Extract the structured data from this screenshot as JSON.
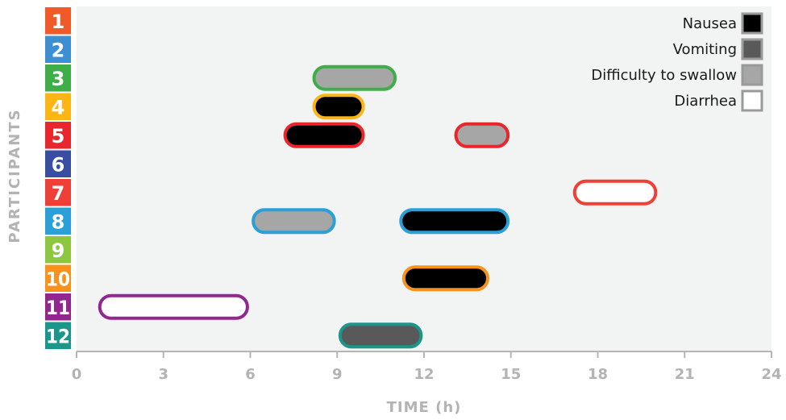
{
  "chart_data": {
    "type": "timeline",
    "xlabel": "TIME (h)",
    "ylabel": "PARTICIPANTS",
    "xlim": [
      0,
      24
    ],
    "xticks": [
      "0",
      "3",
      "6",
      "9",
      "12",
      "15",
      "18",
      "21",
      "24"
    ],
    "participants": [
      {
        "label": "1",
        "color": "#f05a28"
      },
      {
        "label": "2",
        "color": "#3d8fd1"
      },
      {
        "label": "3",
        "color": "#3fae49"
      },
      {
        "label": "4",
        "color": "#fbb616"
      },
      {
        "label": "5",
        "color": "#e8262c"
      },
      {
        "label": "6",
        "color": "#3a4ea1"
      },
      {
        "label": "7",
        "color": "#ee4036"
      },
      {
        "label": "8",
        "color": "#2a9fd8"
      },
      {
        "label": "9",
        "color": "#8dc63f"
      },
      {
        "label": "10",
        "color": "#f7931d"
      },
      {
        "label": "11",
        "color": "#92278f"
      },
      {
        "label": "12",
        "color": "#1a968a"
      }
    ],
    "symptom_colors": {
      "Nausea": "#000000",
      "Vomiting": "#595959",
      "Difficulty to swallow": "#a6a6a6",
      "Diarrhea": "#ffffff"
    },
    "legend": [
      "Nausea",
      "Vomiting",
      "Difficulty to swallow",
      "Diarrhea"
    ],
    "legend_position": "top-right",
    "events": [
      {
        "participant": "3",
        "symptom": "Difficulty to swallow",
        "start": 8.2,
        "end": 11.0
      },
      {
        "participant": "4",
        "symptom": "Nausea",
        "start": 8.2,
        "end": 9.9
      },
      {
        "participant": "5",
        "symptom": "Nausea",
        "start": 7.2,
        "end": 9.9
      },
      {
        "participant": "5",
        "symptom": "Difficulty to swallow",
        "start": 13.1,
        "end": 14.9
      },
      {
        "participant": "7",
        "symptom": "Diarrhea",
        "start": 17.2,
        "end": 20.0
      },
      {
        "participant": "8",
        "symptom": "Difficulty to swallow",
        "start": 6.1,
        "end": 8.9
      },
      {
        "participant": "8",
        "symptom": "Nausea",
        "start": 11.2,
        "end": 14.9
      },
      {
        "participant": "10",
        "symptom": "Nausea",
        "start": 11.3,
        "end": 14.2
      },
      {
        "participant": "11",
        "symptom": "Diarrhea",
        "start": 0.8,
        "end": 5.9
      },
      {
        "participant": "12",
        "symptom": "Vomiting",
        "start": 9.1,
        "end": 11.9
      }
    ]
  }
}
